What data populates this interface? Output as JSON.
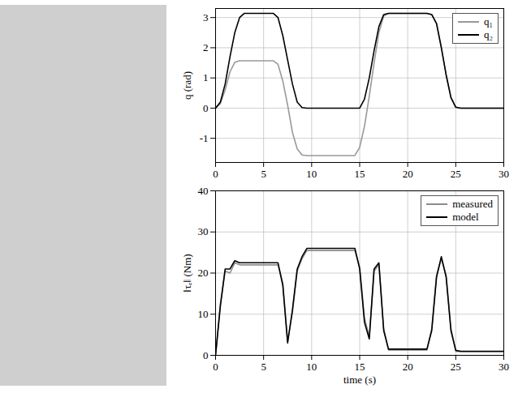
{
  "chart_data": [
    {
      "type": "line",
      "y_label": "q (rad)",
      "x": [
        0,
        0.5,
        1,
        1.5,
        2,
        2.5,
        3,
        3.5,
        4,
        4.5,
        5,
        5.5,
        6,
        6.5,
        7,
        7.5,
        8,
        8.5,
        9,
        9.5,
        10,
        10.5,
        11,
        11.5,
        12,
        12.5,
        13,
        13.5,
        14,
        14.5,
        15,
        15.5,
        16,
        16.5,
        17,
        17.5,
        18,
        18.5,
        19,
        19.5,
        20,
        20.5,
        21,
        21.5,
        22,
        22.5,
        23,
        23.5,
        24,
        24.5,
        25,
        25.5,
        26,
        26.5,
        27,
        27.5,
        28,
        28.5,
        29,
        29.5,
        30
      ],
      "xlim": [
        0,
        30
      ],
      "xticks": [
        0,
        5,
        10,
        15,
        20,
        25,
        30
      ],
      "ylim": [
        -1.8,
        3.3
      ],
      "yticks": [
        -1,
        0,
        1,
        2,
        3
      ],
      "grid": true,
      "legend": "upper right",
      "series": [
        {
          "name": "q₁",
          "color": "#999999",
          "values": [
            0,
            0.15,
            0.6,
            1.2,
            1.52,
            1.57,
            1.57,
            1.57,
            1.57,
            1.57,
            1.57,
            1.57,
            1.57,
            1.45,
            0.9,
            0.1,
            -0.8,
            -1.35,
            -1.55,
            -1.57,
            -1.57,
            -1.57,
            -1.57,
            -1.57,
            -1.57,
            -1.57,
            -1.57,
            -1.57,
            -1.57,
            -1.57,
            -1.3,
            -0.6,
            0.4,
            1.5,
            2.5,
            3.05,
            3.14,
            3.14,
            3.14,
            3.14,
            3.14,
            3.14,
            3.14,
            3.14,
            3.14,
            3.1,
            2.8,
            2.0,
            1.1,
            0.35,
            0.03,
            0,
            0,
            0,
            0,
            0,
            0,
            0,
            0,
            0,
            0
          ]
        },
        {
          "name": "q₂",
          "color": "#000000",
          "values": [
            0,
            0.2,
            0.8,
            1.7,
            2.5,
            3.0,
            3.14,
            3.14,
            3.14,
            3.14,
            3.14,
            3.14,
            3.14,
            3.0,
            2.4,
            1.6,
            0.8,
            0.2,
            0.02,
            0,
            0,
            0,
            0,
            0,
            0,
            0,
            0,
            0,
            0,
            0,
            0,
            0.3,
            1.0,
            1.9,
            2.7,
            3.1,
            3.14,
            3.14,
            3.14,
            3.14,
            3.14,
            3.14,
            3.14,
            3.14,
            3.14,
            3.1,
            2.8,
            2.0,
            1.1,
            0.35,
            0.03,
            0,
            0,
            0,
            0,
            0,
            0,
            0,
            0,
            0,
            0
          ]
        }
      ]
    },
    {
      "type": "line",
      "x_label": "time (s)",
      "y_label": "‖τₑ‖ (Nm)",
      "x": [
        0,
        0.5,
        1,
        1.5,
        2,
        2.5,
        3,
        3.5,
        4,
        4.5,
        5,
        5.5,
        6,
        6.5,
        7,
        7.5,
        8,
        8.5,
        9,
        9.5,
        10,
        10.5,
        11,
        11.5,
        12,
        12.5,
        13,
        13.5,
        14,
        14.5,
        15,
        15.5,
        16,
        16.5,
        17,
        17.5,
        18,
        18.5,
        19,
        19.5,
        20,
        20.5,
        21,
        21.5,
        22,
        22.5,
        23,
        23.5,
        24,
        24.5,
        25,
        25.5,
        26,
        26.5,
        27,
        27.5,
        28,
        28.5,
        29,
        29.5,
        30
      ],
      "xlim": [
        0,
        30
      ],
      "xticks": [
        0,
        5,
        10,
        15,
        20,
        25,
        30
      ],
      "ylim": [
        0,
        40
      ],
      "yticks": [
        0,
        10,
        20,
        30,
        40
      ],
      "grid": true,
      "legend": "upper right",
      "series": [
        {
          "name": "measured",
          "color": "#8c8c8c",
          "values": [
            0,
            12.5,
            20.5,
            20,
            22.5,
            22,
            22,
            22,
            22,
            22,
            22,
            22,
            22,
            22,
            17.5,
            3.5,
            10.5,
            20.5,
            23.5,
            25.5,
            25.5,
            25.5,
            25.5,
            25.5,
            25.5,
            25.5,
            25.5,
            25.5,
            25.5,
            25.5,
            21.5,
            9,
            4.5,
            20.5,
            22,
            6.5,
            1.3,
            1.3,
            1.3,
            1.3,
            1.3,
            1.3,
            1.3,
            1.3,
            1.3,
            6.5,
            19.5,
            23.5,
            19.5,
            6.5,
            1.0,
            0.9,
            0.9,
            0.9,
            0.9,
            0.9,
            0.9,
            0.9,
            0.9,
            0.9,
            0.9
          ]
        },
        {
          "name": "model",
          "color": "#000000",
          "values": [
            0,
            12,
            21,
            21,
            23,
            22.5,
            22.5,
            22.5,
            22.5,
            22.5,
            22.5,
            22.5,
            22.5,
            22.5,
            17,
            3,
            11,
            21,
            24,
            26,
            26,
            26,
            26,
            26,
            26,
            26,
            26,
            26,
            26,
            26,
            21,
            8,
            4,
            21,
            22.5,
            6,
            1.5,
            1.5,
            1.5,
            1.5,
            1.5,
            1.5,
            1.5,
            1.5,
            1.5,
            6,
            19,
            24,
            19,
            6,
            1.2,
            1,
            1,
            1,
            1,
            1,
            1,
            1,
            1,
            1,
            1
          ]
        }
      ]
    }
  ]
}
